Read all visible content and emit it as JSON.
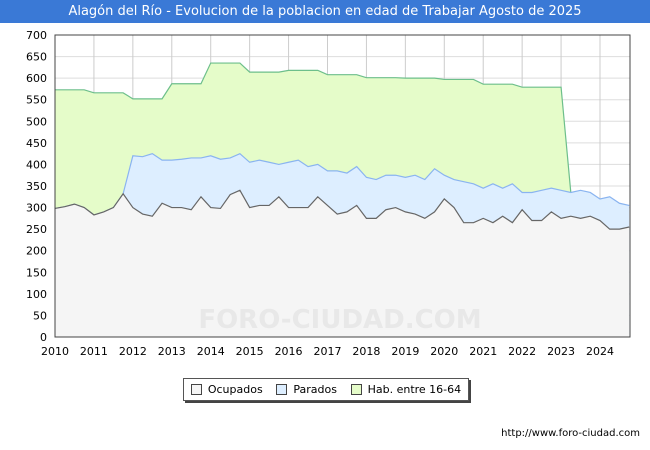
{
  "chart_data": {
    "type": "area",
    "title": "Alagón del Río - Evolucion de la poblacion en edad de Trabajar Agosto de 2025",
    "xlabel": "",
    "ylabel": "",
    "ylim": [
      0,
      700
    ],
    "xlim": [
      2010,
      2024.75
    ],
    "yticks": [
      "0",
      "50",
      "100",
      "150",
      "200",
      "250",
      "300",
      "350",
      "400",
      "450",
      "500",
      "550",
      "600",
      "650",
      "700"
    ],
    "xticks": [
      "2010",
      "2011",
      "2012",
      "2013",
      "2014",
      "2015",
      "2016",
      "2017",
      "2018",
      "2019",
      "2020",
      "2021",
      "2022",
      "2023",
      "2024"
    ],
    "grid": true,
    "legend_position": "bottom",
    "x_start": 2010,
    "x_step": 0.25,
    "series": [
      {
        "name": "Ocupados",
        "color": "#f5f5f5",
        "line": "#666666",
        "values": [
          298,
          302,
          308,
          300,
          283,
          290,
          300,
          332,
          300,
          285,
          280,
          310,
          300,
          300,
          295,
          325,
          300,
          298,
          330,
          340,
          300,
          305,
          305,
          325,
          300,
          300,
          300,
          325,
          305,
          285,
          290,
          305,
          275,
          275,
          295,
          300,
          290,
          285,
          275,
          290,
          320,
          300,
          265,
          265,
          275,
          265,
          280,
          265,
          295,
          270,
          270,
          290,
          275,
          280,
          275,
          280,
          270,
          250,
          250,
          255
        ]
      },
      {
        "name": "Parados",
        "color": "#ddeeff",
        "line": "#8ab4f0",
        "values": [
          0,
          0,
          0,
          0,
          0,
          0,
          0,
          0,
          120,
          133,
          145,
          100,
          110,
          112,
          120,
          90,
          120,
          114,
          85,
          85,
          105,
          105,
          100,
          75,
          105,
          110,
          95,
          75,
          80,
          100,
          90,
          90,
          95,
          90,
          80,
          75,
          80,
          90,
          90,
          100,
          55,
          65,
          95,
          90,
          70,
          90,
          65,
          90,
          40,
          65,
          70,
          55,
          65,
          55,
          65,
          55,
          50,
          75,
          60,
          50
        ]
      },
      {
        "name": "Hab. entre 16-64",
        "color": "#e5fcc9",
        "line": "#6dbf8b",
        "values": [
          573,
          573,
          573,
          573,
          566,
          566,
          566,
          566,
          552,
          552,
          552,
          552,
          587,
          587,
          587,
          587,
          635,
          635,
          635,
          635,
          614,
          614,
          614,
          614,
          618,
          618,
          618,
          618,
          608,
          608,
          608,
          608,
          601,
          601,
          601,
          601,
          600,
          600,
          600,
          600,
          597,
          597,
          597,
          597,
          586,
          586,
          586,
          586,
          579,
          579,
          579,
          579,
          579,
          null,
          null,
          null,
          null,
          null,
          null,
          null
        ]
      }
    ]
  },
  "watermark": "FORO-CIUDAD.COM",
  "footer_url": "http://www.foro-ciudad.com"
}
